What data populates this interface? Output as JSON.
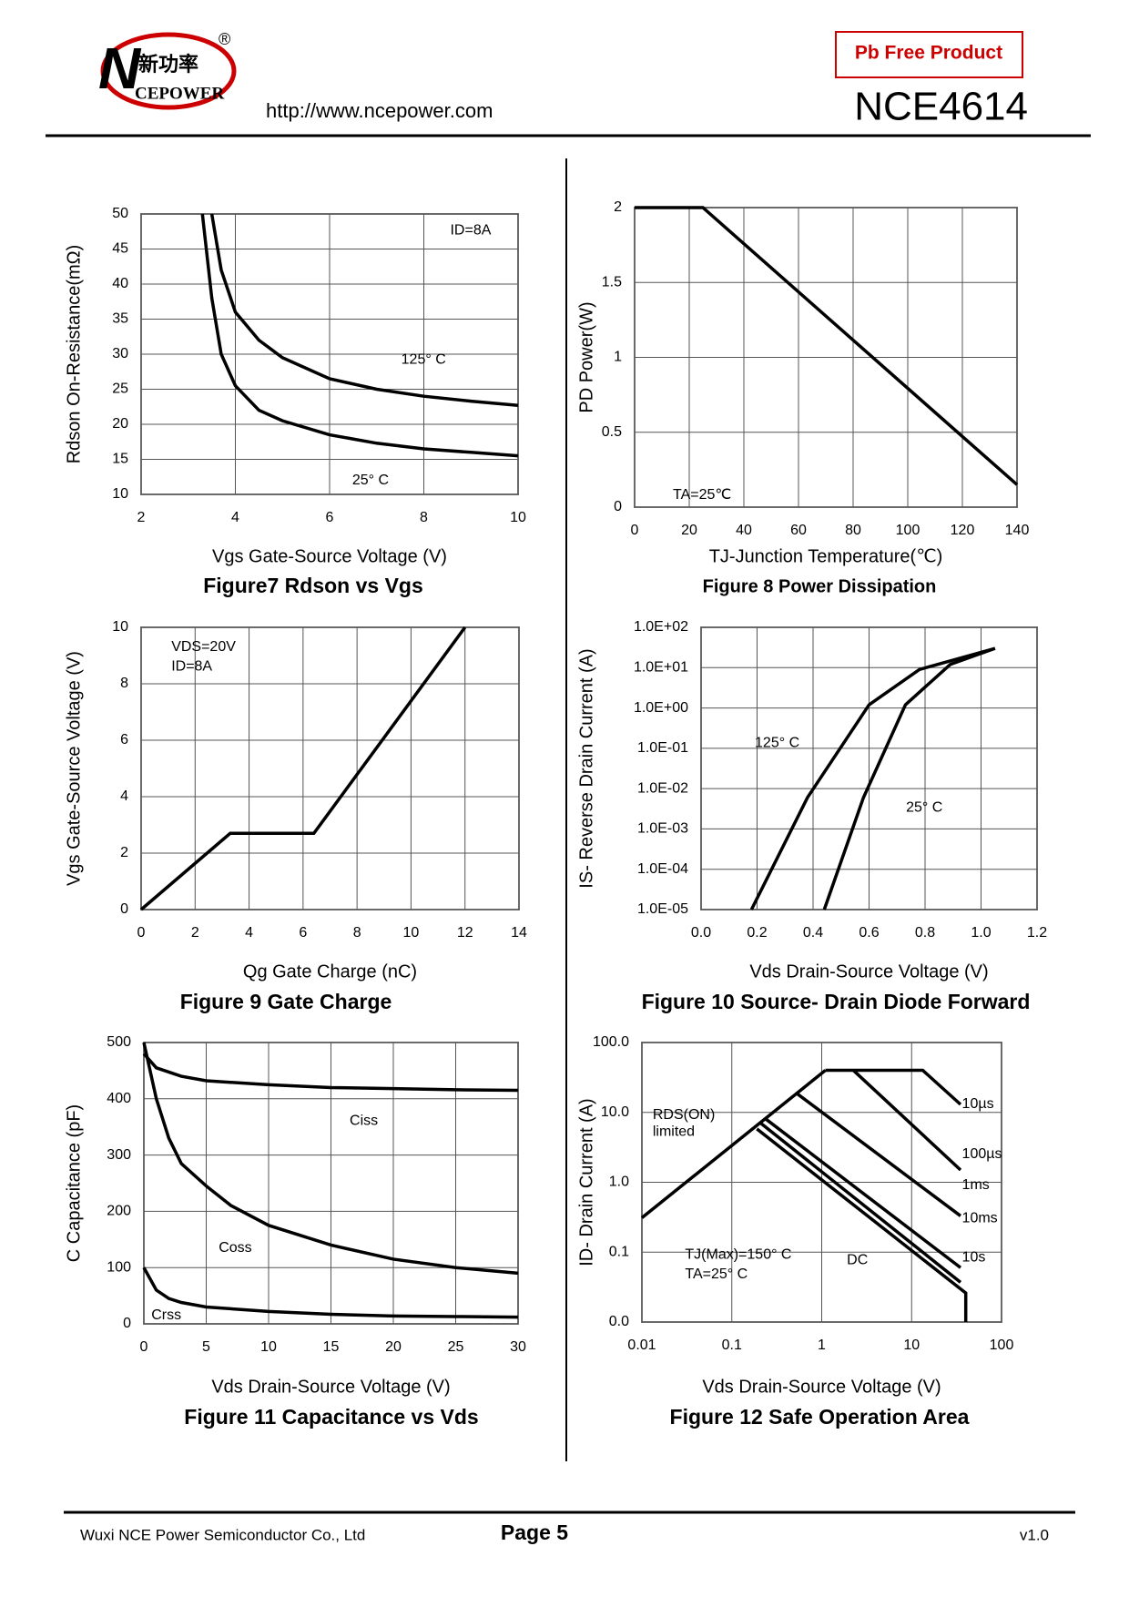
{
  "header": {
    "logo_n": "N",
    "logo_cn": "新功率",
    "logo_en": "CEPOWER",
    "registered": "®",
    "url": "http://www.ncepower.com",
    "badge": "Pb Free Product",
    "part": "NCE4614"
  },
  "footer": {
    "company": "Wuxi NCE Power Semiconductor Co., Ltd",
    "page": "Page 5",
    "version": "v1.0"
  },
  "chart_data": [
    {
      "type": "line",
      "title": "Figure7 Rdson vs Vgs",
      "xlabel": "Vgs Gate-Source Voltage (V)",
      "ylabel": "Rdson On-Resistance(mΩ)",
      "xlim": [
        2,
        10
      ],
      "ylim": [
        10,
        50
      ],
      "xticks": [
        2,
        4,
        6,
        8,
        10
      ],
      "yticks": [
        10,
        15,
        20,
        25,
        30,
        35,
        40,
        45,
        50
      ],
      "grid": true,
      "annotations": [
        "ID=8A",
        "125° C",
        "25° C"
      ],
      "series": [
        {
          "color": "#000000",
          "x": [
            3.5,
            3.7,
            4,
            4.5,
            5,
            6,
            7,
            8,
            9,
            10
          ],
          "values": [
            50,
            42,
            36,
            32,
            29.5,
            26.5,
            25,
            24,
            23.3,
            22.7
          ]
        },
        {
          "color": "#000000",
          "x": [
            3.3,
            3.5,
            3.7,
            4,
            4.5,
            5,
            6,
            7,
            8,
            9,
            10
          ],
          "values": [
            50,
            38,
            30,
            25.5,
            22,
            20.5,
            18.5,
            17.3,
            16.5,
            16,
            15.5
          ]
        }
      ]
    },
    {
      "type": "line",
      "title": "Figure 8 Power Dissipation",
      "xlabel": "TJ-Junction Temperature(℃)",
      "ylabel": "PD Power(W)",
      "xlim": [
        0,
        140
      ],
      "ylim": [
        0,
        2
      ],
      "xticks": [
        0,
        20,
        40,
        60,
        80,
        100,
        120,
        140
      ],
      "yticks": [
        0,
        0.5,
        1,
        1.5,
        2
      ],
      "grid": true,
      "annotations": [
        "TA=25℃"
      ],
      "series": [
        {
          "color": "#000000",
          "x": [
            0,
            25,
            140
          ],
          "values": [
            2,
            2,
            0.15
          ]
        }
      ]
    },
    {
      "type": "line",
      "title": "Figure 9 Gate Charge",
      "xlabel": "Qg Gate Charge (nC)",
      "ylabel": "Vgs Gate-Source Voltage (V)",
      "xlim": [
        0,
        14
      ],
      "ylim": [
        0,
        10
      ],
      "xticks": [
        0,
        2,
        4,
        6,
        8,
        10,
        12,
        14
      ],
      "yticks": [
        0,
        2,
        4,
        6,
        8,
        10
      ],
      "grid": true,
      "annotations": [
        "VDS=20V",
        "ID=8A"
      ],
      "series": [
        {
          "color": "#000000",
          "x": [
            0,
            3.3,
            6.4,
            12
          ],
          "values": [
            0,
            2.7,
            2.7,
            10
          ]
        }
      ]
    },
    {
      "type": "line",
      "title": "Figure 10 Source- Drain Diode Forward",
      "xlabel": "Vds Drain-Source Voltage (V)",
      "ylabel": "IS- Reverse Drain Current (A)",
      "yscale": "log",
      "xlim": [
        0,
        1.2
      ],
      "ylim": [
        1e-05,
        100
      ],
      "xticks": [
        {
          "value": 0,
          "label": "0.0"
        },
        0.2,
        0.4,
        0.6,
        0.8,
        {
          "value": 1,
          "label": "1.0"
        },
        1.2
      ],
      "yticks": [
        {
          "value": 1e-05,
          "label": "1.0E-05"
        },
        {
          "value": 0.0001,
          "label": "1.0E-04"
        },
        {
          "value": 0.001,
          "label": "1.0E-03"
        },
        {
          "value": 0.01,
          "label": "1.0E-02"
        },
        {
          "value": 0.1,
          "label": "1.0E-01"
        },
        {
          "value": 1,
          "label": "1.0E+00"
        },
        {
          "value": 10,
          "label": "1.0E+01"
        },
        {
          "value": 100,
          "label": "1.0E+02"
        }
      ],
      "grid": true,
      "annotations": [
        "125° C",
        "25° C"
      ],
      "series": [
        {
          "color": "#000000",
          "x": [
            0.18,
            0.38,
            0.6,
            0.78,
            1.05
          ],
          "values": [
            1e-05,
            0.006,
            1.2,
            9,
            30
          ]
        },
        {
          "color": "#000000",
          "x": [
            0.44,
            0.58,
            0.73,
            0.89,
            1.05
          ],
          "values": [
            1e-05,
            0.006,
            1.2,
            12,
            30
          ]
        }
      ]
    },
    {
      "type": "line",
      "title": "Figure 11 Capacitance vs Vds",
      "xlabel": "Vds Drain-Source Voltage (V)",
      "ylabel": "C Capacitance (pF)",
      "xlim": [
        0,
        30
      ],
      "ylim": [
        0,
        500
      ],
      "xticks": [
        0,
        5,
        10,
        15,
        20,
        25,
        30
      ],
      "yticks": [
        0,
        100,
        200,
        300,
        400,
        500
      ],
      "grid": true,
      "annotations": [
        "Ciss",
        "Coss",
        "Crss"
      ],
      "series": [
        {
          "color": "#000000",
          "x": [
            0,
            1,
            3,
            5,
            10,
            15,
            20,
            25,
            30
          ],
          "values": [
            480,
            455,
            440,
            432,
            425,
            420,
            418,
            416,
            415
          ]
        },
        {
          "color": "#000000",
          "x": [
            0,
            1,
            2,
            3,
            5,
            7,
            10,
            15,
            20,
            25,
            30
          ],
          "values": [
            500,
            400,
            330,
            285,
            245,
            210,
            175,
            140,
            115,
            100,
            90
          ]
        },
        {
          "color": "#000000",
          "x": [
            0,
            1,
            2,
            3,
            5,
            10,
            15,
            20,
            25,
            30
          ],
          "values": [
            100,
            60,
            45,
            38,
            30,
            22,
            17,
            14,
            13,
            12
          ]
        }
      ]
    },
    {
      "type": "line",
      "title": "Figure 12 Safe Operation Area",
      "xlabel": "Vds Drain-Source Voltage (V)",
      "ylabel": "ID- Drain Current (A)",
      "xscale": "log",
      "yscale": "log",
      "xlim": [
        0.01,
        100
      ],
      "ylim": [
        0.01,
        100
      ],
      "xticks": [
        0.01,
        0.1,
        1,
        10,
        100
      ],
      "yticks": [
        {
          "value": 0.01,
          "label": "0.0"
        },
        0.1,
        {
          "value": 1,
          "label": "1.0"
        },
        {
          "value": 10,
          "label": "10.0"
        },
        {
          "value": 100,
          "label": "100.0"
        }
      ],
      "grid": true,
      "annotations": [
        "RDS(ON)",
        "limited",
        "TJ(Max)=150° C",
        "TA=25° C"
      ],
      "series": [
        {
          "color": "#000000",
          "x": [
            0.01,
            1.1
          ],
          "values": [
            0.31,
            40
          ]
        },
        {
          "name": "10µs",
          "color": "#000000",
          "x": [
            1.1,
            13.3,
            35
          ],
          "values": [
            40,
            40,
            13
          ]
        },
        {
          "name": "100µs",
          "color": "#000000",
          "x": [
            2.25,
            35
          ],
          "values": [
            40,
            1.5
          ]
        },
        {
          "name": "1ms",
          "color": "#000000",
          "x": [
            0.53,
            35
          ],
          "values": [
            18.6,
            0.33
          ]
        },
        {
          "name": "10ms",
          "color": "#000000",
          "x": [
            0.24,
            35
          ],
          "values": [
            8,
            0.06
          ]
        },
        {
          "name": "10s",
          "color": "#000000",
          "x": [
            0.21,
            35
          ],
          "values": [
            7,
            0.037
          ]
        },
        {
          "name": "DC",
          "color": "#000000",
          "x": [
            0.19,
            40,
            40
          ],
          "values": [
            5.8,
            0.026,
            0.01
          ]
        }
      ]
    }
  ]
}
